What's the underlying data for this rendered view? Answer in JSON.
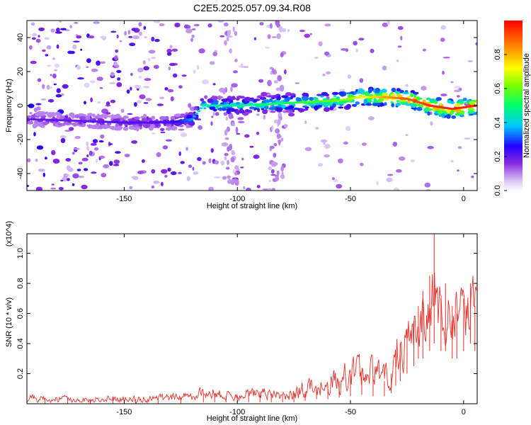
{
  "title": "C2E5.2025.057.09.34.R08",
  "chart_data": [
    {
      "type": "heatmap",
      "xlabel": "Height of straight line (km)",
      "ylabel": "Frequency (Hz)",
      "xlim": [
        -193,
        6
      ],
      "ylim": [
        -50,
        50
      ],
      "x_ticks": [
        -150,
        -100,
        -50,
        0
      ],
      "x_tick_labels": [
        "-150",
        "-100",
        "-50",
        "0"
      ],
      "y_ticks": [
        -40,
        -20,
        0,
        20,
        40
      ],
      "y_tick_labels": [
        "-40",
        "-20",
        "0",
        "20",
        "40"
      ],
      "colorbar": {
        "label": "Normalized spectral amplitude",
        "range": [
          0,
          1
        ],
        "ticks": [
          0.0,
          0.2,
          0.4,
          0.6,
          0.8
        ],
        "tick_labels": [
          "0.0",
          "0.2",
          "0.4",
          "0.6",
          "0.8"
        ],
        "colormap": "rainbow-white"
      },
      "ridge": [
        {
          "x": -193,
          "freq": -8,
          "amp": 0.2
        },
        {
          "x": -170,
          "freq": -9,
          "amp": 0.2
        },
        {
          "x": -150,
          "freq": -10,
          "amp": 0.22
        },
        {
          "x": -130,
          "freq": -10,
          "amp": 0.22
        },
        {
          "x": -120,
          "freq": -8,
          "amp": 0.35
        },
        {
          "x": -115,
          "freq": 0,
          "amp": 0.45
        },
        {
          "x": -100,
          "freq": 0,
          "amp": 0.45
        },
        {
          "x": -85,
          "freq": 1,
          "amp": 0.5
        },
        {
          "x": -70,
          "freq": 2,
          "amp": 0.55
        },
        {
          "x": -55,
          "freq": 3,
          "amp": 0.62
        },
        {
          "x": -45,
          "freq": 5,
          "amp": 0.7
        },
        {
          "x": -35,
          "freq": 5,
          "amp": 0.82
        },
        {
          "x": -25,
          "freq": 4,
          "amp": 0.9
        },
        {
          "x": -15,
          "freq": 0,
          "amp": 0.95
        },
        {
          "x": -5,
          "freq": -2,
          "amp": 0.97
        },
        {
          "x": 6,
          "freq": 0,
          "amp": 0.95
        }
      ],
      "grid": false
    },
    {
      "type": "line",
      "xlabel": "Height of straight line (km)",
      "ylabel": "SNR (10 * v/v)",
      "y_multiplier": "(x10^4)",
      "xlim": [
        -193,
        6
      ],
      "ylim": [
        0.0,
        1.13
      ],
      "x_ticks": [
        -150,
        -100,
        -50,
        0
      ],
      "x_tick_labels": [
        "-150",
        "-100",
        "-50",
        "0"
      ],
      "y_ticks": [
        0.2,
        0.4,
        0.6,
        0.8,
        1.0
      ],
      "y_tick_labels": [
        "0.2",
        "0.4",
        "0.6",
        "0.8",
        "1.0"
      ],
      "series": [
        {
          "color": "#e8302a",
          "x": [
            -193,
            -185,
            -175,
            -165,
            -155,
            -145,
            -135,
            -125,
            -115,
            -110,
            -105,
            -100,
            -95,
            -90,
            -85,
            -80,
            -75,
            -70,
            -65,
            -60,
            -55,
            -50,
            -45,
            -40,
            -35,
            -32,
            -30,
            -28,
            -25,
            -22,
            -20,
            -18,
            -15,
            -13,
            -10,
            -8,
            -5,
            -3,
            0,
            3,
            5,
            6
          ],
          "y": [
            0.03,
            0.03,
            0.035,
            0.03,
            0.035,
            0.03,
            0.035,
            0.04,
            0.06,
            0.07,
            0.05,
            0.05,
            0.07,
            0.08,
            0.06,
            0.05,
            0.05,
            0.08,
            0.1,
            0.12,
            0.15,
            0.2,
            0.22,
            0.18,
            0.15,
            0.2,
            0.3,
            0.4,
            0.5,
            0.55,
            0.65,
            0.75,
            0.85,
            1.13,
            0.7,
            0.8,
            0.65,
            0.6,
            0.7,
            0.8,
            0.65,
            0.45
          ],
          "envelope_max": [
            0.07,
            0.06,
            0.07,
            0.06,
            0.07,
            0.06,
            0.07,
            0.08,
            0.13,
            0.12,
            0.1,
            0.09,
            0.12,
            0.13,
            0.11,
            0.1,
            0.13,
            0.19,
            0.18,
            0.24,
            0.3,
            0.33,
            0.35,
            0.35,
            0.3,
            0.33,
            0.55,
            0.6,
            0.66,
            0.8,
            0.9,
            0.88,
            0.93,
            1.13,
            0.92,
            0.9,
            0.86,
            0.84,
            0.93,
            0.95,
            0.88,
            0.7
          ],
          "envelope_min": [
            0.0,
            0.0,
            0.0,
            0.0,
            0.0,
            0.0,
            0.0,
            0.0,
            0.01,
            0.01,
            0.01,
            0.01,
            0.01,
            0.01,
            0.01,
            0.01,
            0.01,
            0.02,
            0.03,
            0.03,
            0.04,
            0.05,
            0.06,
            0.05,
            0.05,
            0.07,
            0.12,
            0.15,
            0.2,
            0.25,
            0.3,
            0.3,
            0.35,
            0.4,
            0.35,
            0.35,
            0.3,
            0.3,
            0.35,
            0.4,
            0.35,
            0.3
          ]
        }
      ],
      "grid": false
    }
  ]
}
